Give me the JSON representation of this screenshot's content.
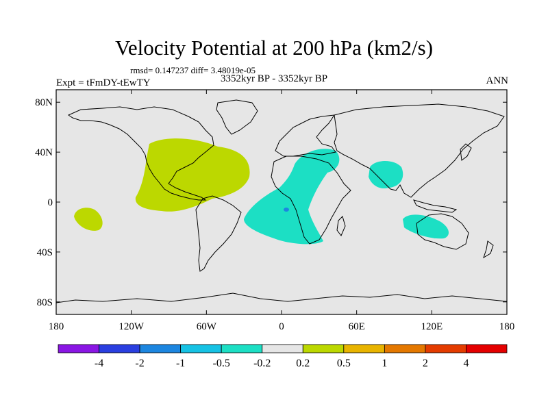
{
  "title": "Velocity Potential at 200 hPa (km2/s)",
  "stats_line": "rmsd= 0.147237 diff= 3.48019e-05",
  "left_label": "Expt = tFmDY-tEwTY",
  "center_label": "3352kyr BP - 3352kyr BP",
  "right_label": "ANN",
  "lat_ticks": [
    "80N",
    "40N",
    "0",
    "40S",
    "80S"
  ],
  "lon_ticks": [
    "180",
    "120W",
    "60W",
    "0",
    "60E",
    "120E",
    "180"
  ],
  "colorbar": {
    "levels": [
      "-4",
      "-2",
      "-1",
      "-0.5",
      "-0.2",
      "0.2",
      "0.5",
      "1",
      "2",
      "4"
    ],
    "colors": [
      "#8a16e4",
      "#2a3fe0",
      "#1c86e0",
      "#16c2e4",
      "#1cdfc4",
      "#e6e6e6",
      "#bcd800",
      "#e8b400",
      "#e47800",
      "#e43c00",
      "#e40000"
    ]
  },
  "colors": {
    "land_outline": "#000000",
    "background": "#e6e6e6"
  }
}
